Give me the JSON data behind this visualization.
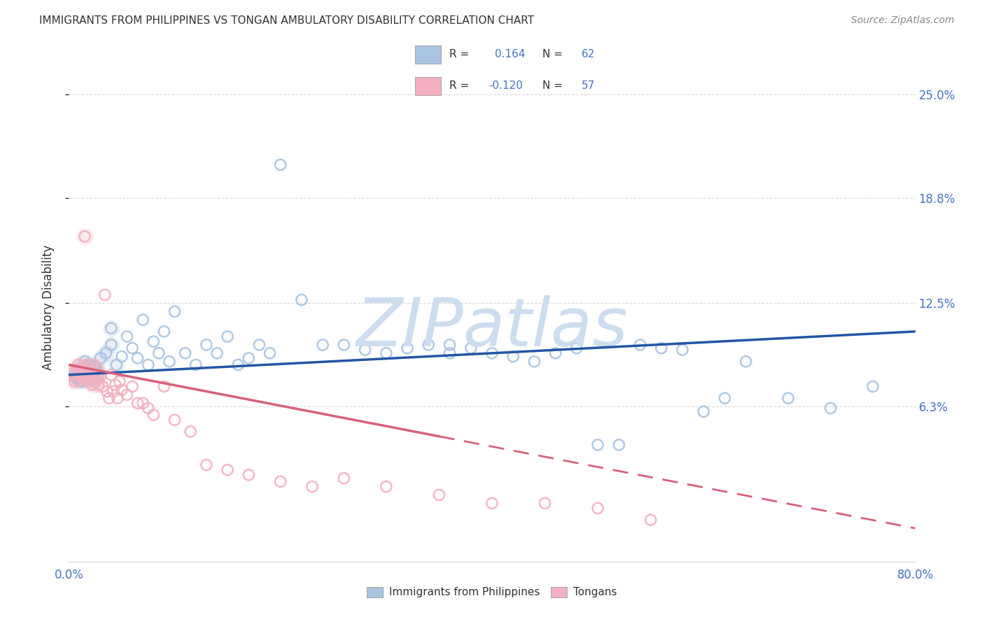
{
  "title": "IMMIGRANTS FROM PHILIPPINES VS TONGAN AMBULATORY DISABILITY CORRELATION CHART",
  "source": "Source: ZipAtlas.com",
  "ylabel": "Ambulatory Disability",
  "xlim": [
    0.0,
    0.8
  ],
  "ylim": [
    -0.03,
    0.275
  ],
  "ytick_positions": [
    0.063,
    0.125,
    0.188,
    0.25
  ],
  "ytick_labels": [
    "6.3%",
    "12.5%",
    "18.8%",
    "25.0%"
  ],
  "xtick_positions": [
    0.0,
    0.16,
    0.32,
    0.48,
    0.64,
    0.8
  ],
  "xtick_labels": [
    "0.0%",
    "",
    "",
    "",
    "",
    "80.0%"
  ],
  "R_blue": "0.164",
  "N_blue": "62",
  "R_pink": "-0.120",
  "N_pink": "57",
  "legend_labels": [
    "Immigrants from Philippines",
    "Tongans"
  ],
  "blue_scatter_color": "#a8c4e0",
  "blue_line_color": "#2255a4",
  "pink_scatter_color": "#f4b0c0",
  "pink_line_color": "#d9607a",
  "watermark_color": "#ccddf0",
  "grid_color": "#d8d8d8",
  "tick_label_color": "#4472c4",
  "text_color": "#333333",
  "source_color": "#888888",
  "background": "#ffffff",
  "blue_x": [
    0.005,
    0.008,
    0.01,
    0.012,
    0.015,
    0.018,
    0.02,
    0.022,
    0.025,
    0.028,
    0.03,
    0.035,
    0.04,
    0.04,
    0.045,
    0.05,
    0.055,
    0.06,
    0.065,
    0.07,
    0.075,
    0.08,
    0.085,
    0.09,
    0.095,
    0.1,
    0.11,
    0.12,
    0.13,
    0.14,
    0.15,
    0.16,
    0.17,
    0.18,
    0.19,
    0.2,
    0.22,
    0.24,
    0.26,
    0.28,
    0.3,
    0.32,
    0.34,
    0.36,
    0.36,
    0.38,
    0.4,
    0.42,
    0.44,
    0.46,
    0.48,
    0.5,
    0.52,
    0.54,
    0.56,
    0.58,
    0.6,
    0.62,
    0.64,
    0.68,
    0.72,
    0.76
  ],
  "blue_y": [
    0.082,
    0.08,
    0.085,
    0.078,
    0.09,
    0.083,
    0.088,
    0.079,
    0.086,
    0.083,
    0.092,
    0.095,
    0.1,
    0.11,
    0.088,
    0.093,
    0.105,
    0.098,
    0.092,
    0.115,
    0.088,
    0.102,
    0.095,
    0.108,
    0.09,
    0.12,
    0.095,
    0.088,
    0.1,
    0.095,
    0.105,
    0.088,
    0.092,
    0.1,
    0.095,
    0.208,
    0.127,
    0.1,
    0.1,
    0.097,
    0.095,
    0.098,
    0.1,
    0.095,
    0.1,
    0.098,
    0.095,
    0.093,
    0.09,
    0.095,
    0.098,
    0.04,
    0.04,
    0.1,
    0.098,
    0.097,
    0.06,
    0.068,
    0.09,
    0.068,
    0.062,
    0.075
  ],
  "pink_x": [
    0.003,
    0.005,
    0.006,
    0.007,
    0.008,
    0.009,
    0.01,
    0.011,
    0.012,
    0.013,
    0.014,
    0.015,
    0.016,
    0.017,
    0.018,
    0.019,
    0.02,
    0.021,
    0.022,
    0.023,
    0.024,
    0.025,
    0.026,
    0.027,
    0.028,
    0.03,
    0.032,
    0.034,
    0.036,
    0.038,
    0.04,
    0.042,
    0.044,
    0.046,
    0.048,
    0.05,
    0.055,
    0.06,
    0.065,
    0.07,
    0.075,
    0.08,
    0.09,
    0.1,
    0.115,
    0.13,
    0.15,
    0.17,
    0.2,
    0.23,
    0.26,
    0.3,
    0.35,
    0.4,
    0.45,
    0.5,
    0.55
  ],
  "pink_y": [
    0.083,
    0.078,
    0.082,
    0.085,
    0.079,
    0.088,
    0.081,
    0.086,
    0.083,
    0.079,
    0.085,
    0.165,
    0.082,
    0.088,
    0.079,
    0.086,
    0.082,
    0.083,
    0.076,
    0.088,
    0.082,
    0.078,
    0.086,
    0.08,
    0.076,
    0.082,
    0.075,
    0.13,
    0.072,
    0.068,
    0.082,
    0.072,
    0.076,
    0.068,
    0.078,
    0.073,
    0.07,
    0.075,
    0.065,
    0.065,
    0.062,
    0.058,
    0.075,
    0.055,
    0.048,
    0.028,
    0.025,
    0.022,
    0.018,
    0.015,
    0.02,
    0.015,
    0.01,
    0.005,
    0.005,
    0.002,
    -0.005
  ],
  "blue_line_x0": 0.0,
  "blue_line_x1": 0.8,
  "blue_line_y0": 0.082,
  "blue_line_y1": 0.108,
  "pink_line_x0": 0.0,
  "pink_line_x1": 0.8,
  "pink_line_y0": 0.088,
  "pink_line_y1": -0.01
}
